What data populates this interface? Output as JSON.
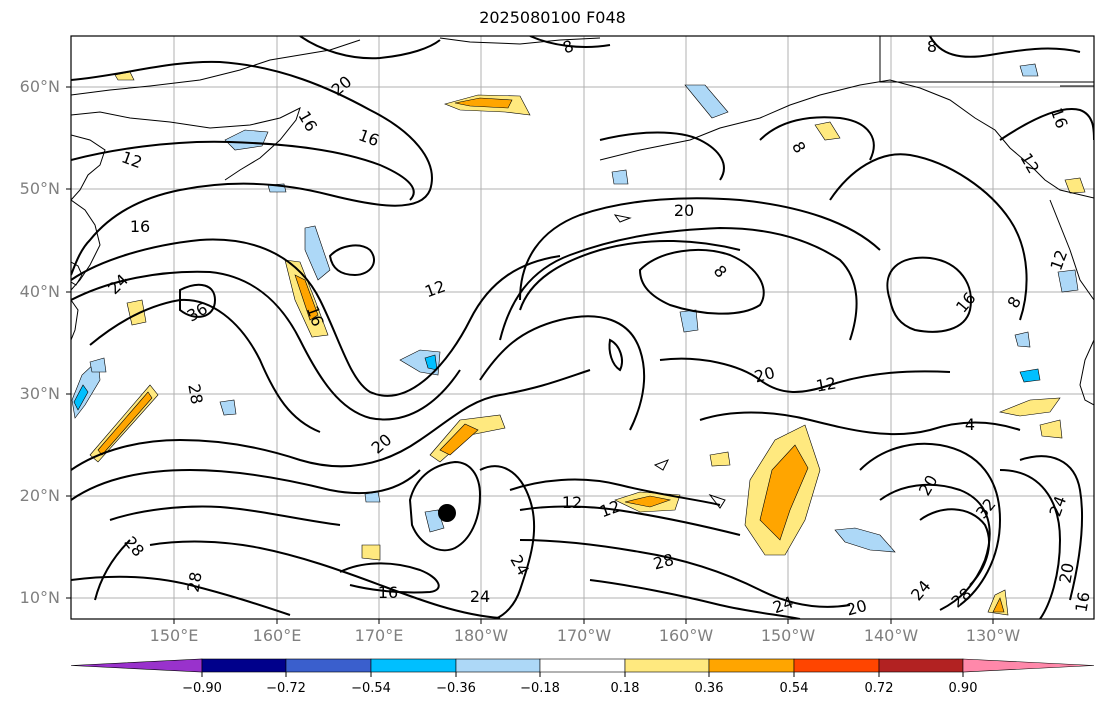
{
  "title": "2025080100 F048",
  "lat_labels": [
    "60°N",
    "50°N",
    "40°N",
    "30°N",
    "20°N",
    "10°N"
  ],
  "lon_labels": [
    "150°E",
    "160°E",
    "170°E",
    "180°W",
    "170°W",
    "160°W",
    "150°W",
    "140°W",
    "130°W"
  ],
  "colorbar": {
    "ticks": [
      "−0.90",
      "−0.72",
      "−0.54",
      "−0.36",
      "−0.18",
      "0.18",
      "0.36",
      "0.54",
      "0.72",
      "0.90"
    ],
    "colors": [
      "#9932CC",
      "#00008B",
      "#3A5FCD",
      "#00BFFF",
      "#ADD8F7",
      "#FFFFFF",
      "#FFE97F",
      "#FFA500",
      "#FF4500",
      "#B22222",
      "#FF88AA"
    ]
  },
  "contour_labels": [
    {
      "text": "20"
    },
    {
      "text": "16"
    },
    {
      "text": "12"
    },
    {
      "text": "16"
    },
    {
      "text": "24"
    },
    {
      "text": "36"
    },
    {
      "text": "28"
    },
    {
      "text": "20"
    },
    {
      "text": "12"
    },
    {
      "text": "16"
    },
    {
      "text": "28"
    },
    {
      "text": "28"
    },
    {
      "text": "16"
    },
    {
      "text": "24"
    },
    {
      "text": "24"
    },
    {
      "text": "12"
    },
    {
      "text": "12"
    },
    {
      "text": "28"
    },
    {
      "text": "20"
    },
    {
      "text": "8"
    },
    {
      "text": "20"
    },
    {
      "text": "12"
    },
    {
      "text": "8"
    },
    {
      "text": "8"
    },
    {
      "text": "16"
    },
    {
      "text": "8"
    },
    {
      "text": "12"
    },
    {
      "text": "16"
    },
    {
      "text": "4"
    },
    {
      "text": "20"
    },
    {
      "text": "32"
    },
    {
      "text": "24"
    },
    {
      "text": "20"
    },
    {
      "text": "24"
    },
    {
      "text": "28"
    },
    {
      "text": "24"
    },
    {
      "text": "20"
    },
    {
      "text": "16"
    },
    {
      "text": "8"
    },
    {
      "text": "16"
    },
    {
      "text": "12"
    }
  ],
  "marker": {
    "type": "storm-center"
  }
}
